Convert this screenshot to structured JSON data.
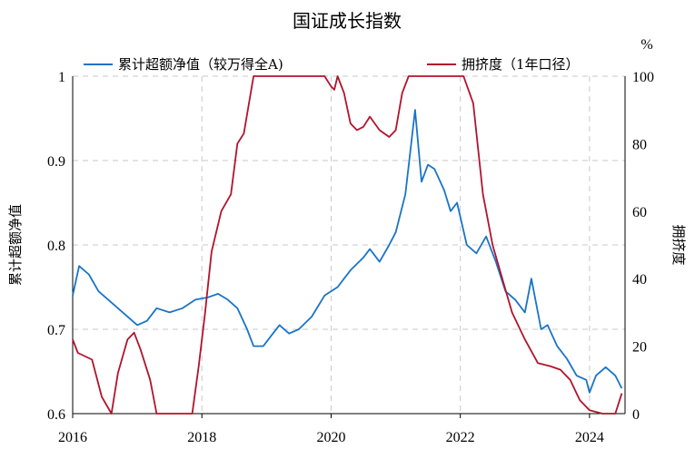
{
  "chart_data": {
    "type": "line",
    "title": "国证成长指数",
    "xlabel": "",
    "ylabel": "累计超额净值",
    "y2label": "拥挤度",
    "y2unit": "%",
    "xlim": [
      2016.0,
      2024.55
    ],
    "ylim": [
      0.6,
      1.0
    ],
    "y2lim": [
      0,
      100
    ],
    "xticks": [
      "2016",
      "2018",
      "2020",
      "2022",
      "2024"
    ],
    "yticks": [
      "0.6",
      "0.7",
      "0.8",
      "0.9",
      "1"
    ],
    "y2ticks": [
      "0",
      "20",
      "40",
      "60",
      "80",
      "100"
    ],
    "grid": "dashed",
    "legend_position": "top",
    "series": [
      {
        "name": "累计超额净值（较万得全A)",
        "axis": "left",
        "color": "#1874c8",
        "x": [
          2016.0,
          2016.1,
          2016.25,
          2016.4,
          2016.55,
          2016.7,
          2016.85,
          2017.0,
          2017.15,
          2017.3,
          2017.5,
          2017.7,
          2017.9,
          2018.1,
          2018.25,
          2018.4,
          2018.55,
          2018.7,
          2018.8,
          2018.95,
          2019.1,
          2019.2,
          2019.35,
          2019.5,
          2019.7,
          2019.9,
          2020.1,
          2020.3,
          2020.5,
          2020.6,
          2020.75,
          2020.9,
          2021.0,
          2021.15,
          2021.3,
          2021.4,
          2021.5,
          2021.6,
          2021.75,
          2021.85,
          2021.95,
          2022.1,
          2022.25,
          2022.4,
          2022.55,
          2022.7,
          2022.85,
          2023.0,
          2023.1,
          2023.25,
          2023.35,
          2023.5,
          2023.65,
          2023.8,
          2023.95,
          2024.0,
          2024.1,
          2024.25,
          2024.4,
          2024.5
        ],
        "y": [
          0.74,
          0.775,
          0.765,
          0.745,
          0.735,
          0.725,
          0.715,
          0.705,
          0.71,
          0.725,
          0.72,
          0.725,
          0.735,
          0.738,
          0.742,
          0.735,
          0.725,
          0.7,
          0.68,
          0.68,
          0.695,
          0.705,
          0.695,
          0.7,
          0.715,
          0.74,
          0.75,
          0.77,
          0.785,
          0.795,
          0.78,
          0.8,
          0.815,
          0.86,
          0.96,
          0.875,
          0.895,
          0.89,
          0.865,
          0.84,
          0.85,
          0.8,
          0.79,
          0.81,
          0.78,
          0.745,
          0.735,
          0.72,
          0.76,
          0.7,
          0.705,
          0.68,
          0.665,
          0.645,
          0.64,
          0.625,
          0.645,
          0.655,
          0.645,
          0.63
        ]
      },
      {
        "name": "拥挤度（1年口径）",
        "axis": "right",
        "color": "#b0142c",
        "x": [
          2016.0,
          2016.08,
          2016.3,
          2016.45,
          2016.6,
          2016.7,
          2016.85,
          2016.95,
          2017.05,
          2017.2,
          2017.3,
          2017.45,
          2017.7,
          2017.85,
          2017.95,
          2018.05,
          2018.15,
          2018.3,
          2018.45,
          2018.55,
          2018.65,
          2018.8,
          2019.0,
          2019.3,
          2019.6,
          2019.75,
          2019.9,
          2020.0,
          2020.05,
          2020.1,
          2020.2,
          2020.3,
          2020.4,
          2020.5,
          2020.6,
          2020.75,
          2020.9,
          2021.0,
          2021.1,
          2021.2,
          2021.35,
          2021.5,
          2021.7,
          2021.9,
          2022.05,
          2022.2,
          2022.35,
          2022.5,
          2022.65,
          2022.8,
          2023.0,
          2023.2,
          2023.4,
          2023.55,
          2023.7,
          2023.85,
          2024.0,
          2024.2,
          2024.4,
          2024.5
        ],
        "y": [
          22,
          18,
          16,
          5,
          0,
          12,
          22,
          24,
          19,
          10,
          0,
          0,
          0,
          0,
          14,
          30,
          48,
          60,
          65,
          80,
          83,
          100,
          100,
          100,
          100,
          100,
          100,
          97,
          96,
          100,
          95,
          86,
          84,
          85,
          88,
          84,
          82,
          84,
          95,
          100,
          100,
          100,
          100,
          100,
          100,
          92,
          65,
          50,
          40,
          30,
          22,
          15,
          14,
          13,
          10,
          4,
          1,
          0,
          0,
          6
        ]
      }
    ]
  }
}
